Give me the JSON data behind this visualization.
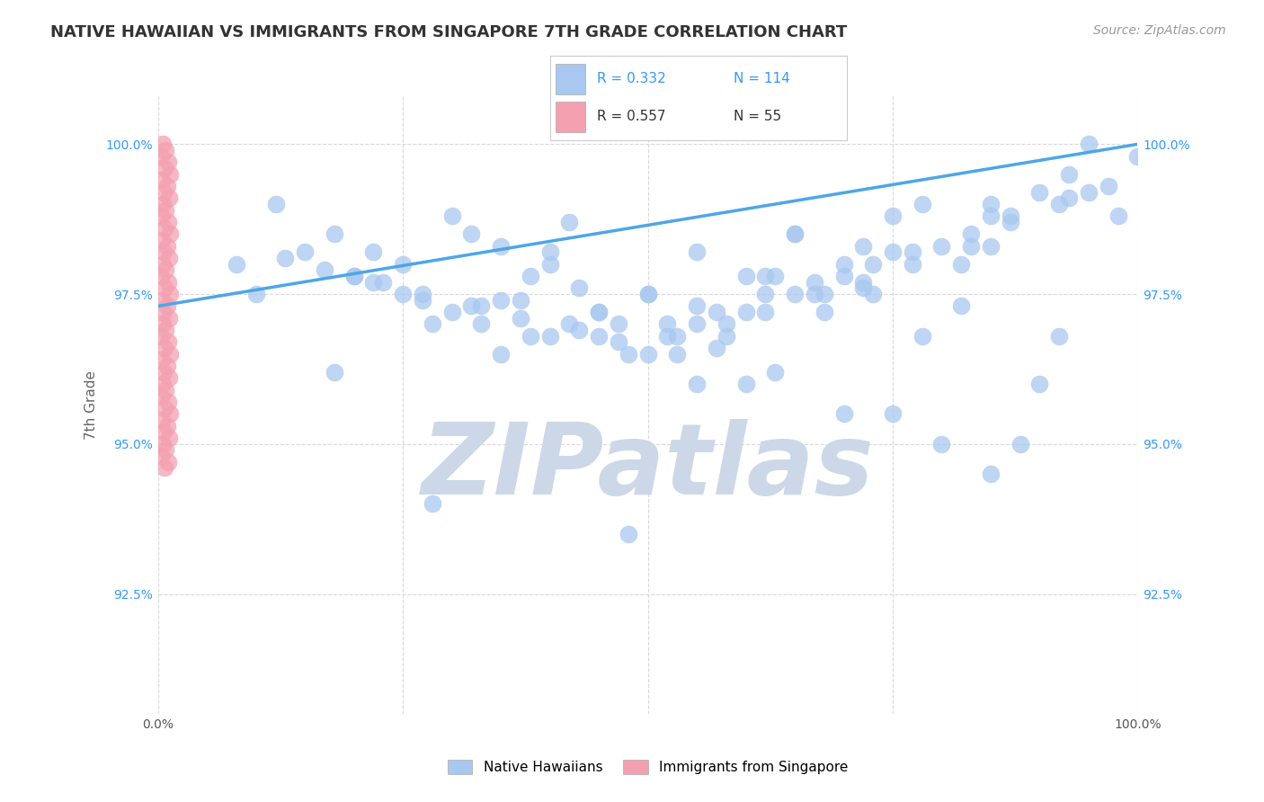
{
  "title": "NATIVE HAWAIIAN VS IMMIGRANTS FROM SINGAPORE 7TH GRADE CORRELATION CHART",
  "source": "Source: ZipAtlas.com",
  "ylabel": "7th Grade",
  "xlim": [
    0.0,
    1.0
  ],
  "ylim": [
    0.905,
    1.008
  ],
  "yticks": [
    0.925,
    0.95,
    0.975,
    1.0
  ],
  "ytick_labels": [
    "92.5%",
    "95.0%",
    "97.5%",
    "100.0%"
  ],
  "xticks": [
    0.0,
    0.25,
    0.5,
    0.75,
    1.0
  ],
  "xtick_labels": [
    "0.0%",
    "",
    "",
    "",
    "100.0%"
  ],
  "blue_R": 0.332,
  "blue_N": 114,
  "pink_R": 0.557,
  "pink_N": 55,
  "blue_color": "#a8c8f0",
  "pink_color": "#f4a0b0",
  "trend_color": "#4da6e8",
  "background_color": "#ffffff",
  "grid_color": "#d8d8d8",
  "watermark_color": "#ccd8e8",
  "title_color": "#333333",
  "stat_color": "#3399ff",
  "legend1_label": "Native Hawaiians",
  "legend2_label": "Immigrants from Singapore",
  "blue_scatter_x": [
    0.08,
    0.18,
    0.12,
    0.22,
    0.25,
    0.3,
    0.28,
    0.35,
    0.38,
    0.32,
    0.4,
    0.45,
    0.42,
    0.5,
    0.48,
    0.55,
    0.52,
    0.6,
    0.58,
    0.65,
    0.62,
    0.7,
    0.68,
    0.75,
    0.72,
    0.8,
    0.78,
    0.85,
    0.9,
    0.95,
    0.2,
    0.27,
    0.33,
    0.43,
    0.53,
    0.63,
    0.73,
    0.83,
    0.93,
    0.15,
    0.25,
    0.35,
    0.45,
    0.55,
    0.65,
    0.75,
    0.85,
    0.95,
    0.1,
    0.2,
    0.3,
    0.4,
    0.5,
    0.6,
    0.7,
    0.8,
    0.9,
    1.0,
    0.22,
    0.32,
    0.42,
    0.52,
    0.62,
    0.72,
    0.82,
    0.92,
    0.17,
    0.27,
    0.37,
    0.47,
    0.57,
    0.67,
    0.77,
    0.87,
    0.97,
    0.13,
    0.23,
    0.33,
    0.43,
    0.53,
    0.63,
    0.73,
    0.83,
    0.93,
    0.37,
    0.47,
    0.57,
    0.67,
    0.77,
    0.87,
    0.38,
    0.58,
    0.68,
    0.35,
    0.55,
    0.75,
    0.85,
    0.28,
    0.48,
    0.88,
    0.18,
    0.6,
    0.4,
    0.5,
    0.65,
    0.78,
    0.98,
    0.7,
    0.85,
    0.92,
    0.82,
    0.62,
    0.72,
    0.45,
    0.55
  ],
  "blue_scatter_y": [
    0.98,
    0.985,
    0.99,
    0.982,
    0.975,
    0.988,
    0.97,
    0.983,
    0.978,
    0.985,
    0.98,
    0.972,
    0.987,
    0.975,
    0.965,
    0.982,
    0.97,
    0.978,
    0.968,
    0.985,
    0.975,
    0.98,
    0.972,
    0.988,
    0.977,
    0.983,
    0.968,
    0.99,
    0.992,
    1.0,
    0.978,
    0.974,
    0.97,
    0.976,
    0.968,
    0.978,
    0.98,
    0.985,
    0.995,
    0.982,
    0.98,
    0.974,
    0.972,
    0.97,
    0.975,
    0.982,
    0.988,
    0.992,
    0.975,
    0.978,
    0.972,
    0.968,
    0.965,
    0.96,
    0.955,
    0.95,
    0.96,
    0.998,
    0.977,
    0.973,
    0.97,
    0.968,
    0.972,
    0.976,
    0.98,
    0.99,
    0.979,
    0.975,
    0.971,
    0.967,
    0.972,
    0.977,
    0.982,
    0.987,
    0.993,
    0.981,
    0.977,
    0.973,
    0.969,
    0.965,
    0.962,
    0.975,
    0.983,
    0.991,
    0.974,
    0.97,
    0.966,
    0.975,
    0.98,
    0.988,
    0.968,
    0.97,
    0.975,
    0.965,
    0.96,
    0.955,
    0.945,
    0.94,
    0.935,
    0.95,
    0.962,
    0.972,
    0.982,
    0.975,
    0.985,
    0.99,
    0.988,
    0.978,
    0.983,
    0.968,
    0.973,
    0.978,
    0.983,
    0.968,
    0.973
  ],
  "pink_scatter_x": [
    0.005,
    0.008,
    0.003,
    0.01,
    0.007,
    0.012,
    0.004,
    0.009,
    0.006,
    0.011,
    0.005,
    0.008,
    0.003,
    0.01,
    0.007,
    0.012,
    0.004,
    0.009,
    0.006,
    0.011,
    0.005,
    0.008,
    0.003,
    0.01,
    0.007,
    0.012,
    0.004,
    0.009,
    0.006,
    0.011,
    0.005,
    0.008,
    0.003,
    0.01,
    0.007,
    0.012,
    0.004,
    0.009,
    0.006,
    0.011,
    0.005,
    0.008,
    0.003,
    0.01,
    0.007,
    0.012,
    0.004,
    0.009,
    0.006,
    0.011,
    0.005,
    0.008,
    0.003,
    0.01,
    0.007
  ],
  "pink_scatter_y": [
    1.0,
    0.999,
    0.998,
    0.997,
    0.996,
    0.995,
    0.994,
    0.993,
    0.992,
    0.991,
    0.99,
    0.989,
    0.988,
    0.987,
    0.986,
    0.985,
    0.984,
    0.983,
    0.982,
    0.981,
    0.98,
    0.979,
    0.978,
    0.977,
    0.976,
    0.975,
    0.974,
    0.973,
    0.972,
    0.971,
    0.97,
    0.969,
    0.968,
    0.967,
    0.966,
    0.965,
    0.964,
    0.963,
    0.962,
    0.961,
    0.96,
    0.959,
    0.958,
    0.957,
    0.956,
    0.955,
    0.954,
    0.953,
    0.952,
    0.951,
    0.95,
    0.949,
    0.948,
    0.947,
    0.946
  ],
  "trend_x_start": 0.0,
  "trend_x_end": 1.0,
  "trend_y_start": 0.973,
  "trend_y_end": 1.0
}
